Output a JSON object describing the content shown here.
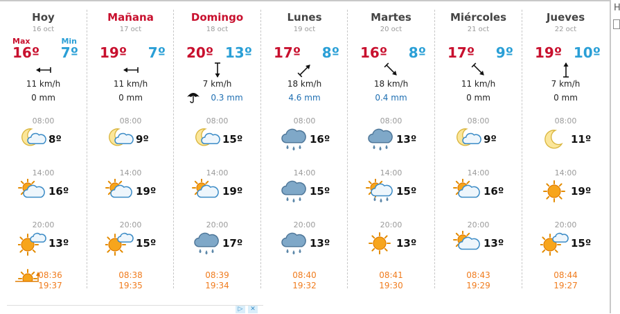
{
  "edge_text": "H",
  "columns": [
    {
      "name": "Hoy",
      "date": "16 oct",
      "highlight": false,
      "max": "16º",
      "min": "7º",
      "max_label": "Max",
      "min_label": "Min",
      "wind_dir": "w",
      "wind": "11 km/h",
      "rain": "0 mm",
      "rain_wet": false,
      "umbrella": false,
      "slots": [
        {
          "time": "08:00",
          "temp": "8º",
          "icon": "moon-cloud-icon"
        },
        {
          "time": "14:00",
          "temp": "16º",
          "icon": "sun-cloud-icon"
        },
        {
          "time": "20:00",
          "temp": "13º",
          "icon": "sun-small-cloud-icon"
        }
      ],
      "sunrise": "08:36",
      "sunset": "19:37",
      "show_sun_icon": true
    },
    {
      "name": "Mañana",
      "date": "17 oct",
      "highlight": true,
      "max": "19º",
      "min": "7º",
      "wind_dir": "w",
      "wind": "11 km/h",
      "rain": "0 mm",
      "rain_wet": false,
      "umbrella": false,
      "slots": [
        {
          "time": "08:00",
          "temp": "9º",
          "icon": "moon-cloud-icon"
        },
        {
          "time": "14:00",
          "temp": "19º",
          "icon": "sun-cloud-icon"
        },
        {
          "time": "20:00",
          "temp": "15º",
          "icon": "sun-small-cloud-icon"
        }
      ],
      "sunrise": "08:38",
      "sunset": "19:35"
    },
    {
      "name": "Domingo",
      "date": "18 oct",
      "highlight": true,
      "max": "20º",
      "min": "13º",
      "wind_dir": "s",
      "wind": "7 km/h",
      "rain": "0.3 mm",
      "rain_wet": true,
      "umbrella": true,
      "slots": [
        {
          "time": "08:00",
          "temp": "15º",
          "icon": "moon-cloud-icon"
        },
        {
          "time": "14:00",
          "temp": "19º",
          "icon": "sun-cloud-icon"
        },
        {
          "time": "20:00",
          "temp": "17º",
          "icon": "rain-cloud-icon"
        }
      ],
      "sunrise": "08:39",
      "sunset": "19:34"
    },
    {
      "name": "Lunes",
      "date": "19 oct",
      "highlight": false,
      "max": "17º",
      "min": "8º",
      "wind_dir": "ne",
      "wind": "18 km/h",
      "rain": "4.6 mm",
      "rain_wet": true,
      "umbrella": false,
      "slots": [
        {
          "time": "08:00",
          "temp": "16º",
          "icon": "rain-cloud-icon"
        },
        {
          "time": "14:00",
          "temp": "15º",
          "icon": "rain-cloud-icon"
        },
        {
          "time": "20:00",
          "temp": "13º",
          "icon": "rain-cloud-icon"
        }
      ],
      "sunrise": "08:40",
      "sunset": "19:32"
    },
    {
      "name": "Martes",
      "date": "20 oct",
      "highlight": false,
      "max": "16º",
      "min": "8º",
      "wind_dir": "se",
      "wind": "18 km/h",
      "rain": "0.4 mm",
      "rain_wet": true,
      "umbrella": false,
      "slots": [
        {
          "time": "08:00",
          "temp": "13º",
          "icon": "rain-cloud-icon"
        },
        {
          "time": "14:00",
          "temp": "15º",
          "icon": "sun-rain-cloud-icon"
        },
        {
          "time": "20:00",
          "temp": "13º",
          "icon": "sun-icon"
        }
      ],
      "sunrise": "08:41",
      "sunset": "19:30"
    },
    {
      "name": "Miércoles",
      "date": "21 oct",
      "highlight": false,
      "max": "17º",
      "min": "9º",
      "wind_dir": "se",
      "wind": "11 km/h",
      "rain": "0 mm",
      "rain_wet": false,
      "umbrella": false,
      "slots": [
        {
          "time": "08:00",
          "temp": "9º",
          "icon": "moon-cloud-icon"
        },
        {
          "time": "14:00",
          "temp": "16º",
          "icon": "sun-cloud-icon"
        },
        {
          "time": "20:00",
          "temp": "13º",
          "icon": "sun-cloud-icon"
        }
      ],
      "sunrise": "08:43",
      "sunset": "19:29"
    },
    {
      "name": "Jueves",
      "date": "22 oct",
      "highlight": false,
      "max": "19º",
      "min": "10º",
      "wind_dir": "n",
      "wind": "7 km/h",
      "rain": "0 mm",
      "rain_wet": false,
      "umbrella": false,
      "slots": [
        {
          "time": "08:00",
          "temp": "11º",
          "icon": "moon-icon"
        },
        {
          "time": "14:00",
          "temp": "19º",
          "icon": "sun-icon"
        },
        {
          "time": "20:00",
          "temp": "15º",
          "icon": "sun-small-cloud-icon"
        }
      ],
      "sunrise": "08:44",
      "sunset": "19:27"
    }
  ],
  "colors": {
    "max": "#c8102e",
    "min": "#2a9fd6",
    "sun": "#f7a51c",
    "sunset": "#f07c1e",
    "cloud_rain": "#5b86a8"
  }
}
